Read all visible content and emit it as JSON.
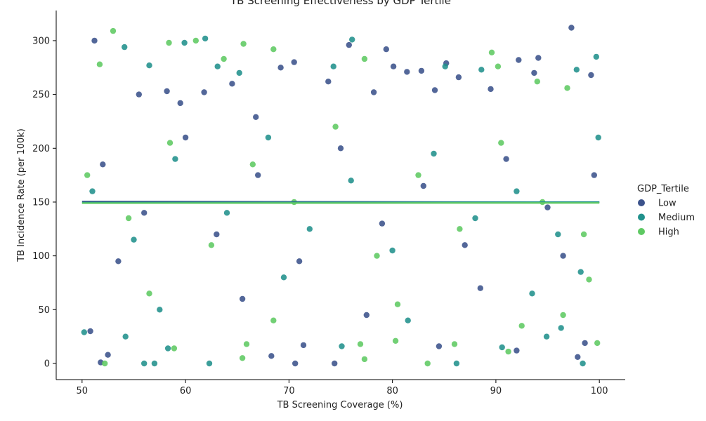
{
  "chart_data": {
    "type": "scatter",
    "title": "TB Screening Effectiveness by GDP Tertile",
    "xlabel": "TB Screening Coverage (%)",
    "ylabel": "TB Incidence Rate (per 100k)",
    "xlim": [
      47.5,
      102.5
    ],
    "ylim": [
      -15,
      328
    ],
    "xticks": [
      50,
      60,
      70,
      80,
      90,
      100
    ],
    "yticks": [
      0,
      50,
      100,
      150,
      200,
      250,
      300
    ],
    "grid": false,
    "legend": {
      "title": "GDP_Tertile",
      "placement": "right-center"
    },
    "series": [
      {
        "name": "Low",
        "color": "#3b528b",
        "regression": {
          "x": [
            50,
            100
          ],
          "y": [
            150.5,
            149.8
          ]
        },
        "points": [
          {
            "x": 51.2,
            "y": 300
          },
          {
            "x": 52.5,
            "y": 8
          },
          {
            "x": 51.8,
            "y": 1
          },
          {
            "x": 50.8,
            "y": 30
          },
          {
            "x": 55.5,
            "y": 250
          },
          {
            "x": 58.2,
            "y": 253
          },
          {
            "x": 59.5,
            "y": 242
          },
          {
            "x": 61.8,
            "y": 252
          },
          {
            "x": 64.5,
            "y": 260
          },
          {
            "x": 66.8,
            "y": 229
          },
          {
            "x": 68.3,
            "y": 7
          },
          {
            "x": 69.2,
            "y": 275
          },
          {
            "x": 70.5,
            "y": 280
          },
          {
            "x": 71.4,
            "y": 17
          },
          {
            "x": 70.6,
            "y": 0
          },
          {
            "x": 73.8,
            "y": 262
          },
          {
            "x": 74.4,
            "y": 0
          },
          {
            "x": 75.8,
            "y": 296
          },
          {
            "x": 78.2,
            "y": 252
          },
          {
            "x": 79.4,
            "y": 292
          },
          {
            "x": 80.1,
            "y": 276
          },
          {
            "x": 81.4,
            "y": 271
          },
          {
            "x": 82.8,
            "y": 272
          },
          {
            "x": 84.1,
            "y": 254
          },
          {
            "x": 85.2,
            "y": 279
          },
          {
            "x": 86.4,
            "y": 266
          },
          {
            "x": 89.5,
            "y": 255
          },
          {
            "x": 92.2,
            "y": 282
          },
          {
            "x": 93.7,
            "y": 270
          },
          {
            "x": 94.1,
            "y": 284
          },
          {
            "x": 97.3,
            "y": 312
          },
          {
            "x": 97.9,
            "y": 6
          },
          {
            "x": 98.6,
            "y": 19
          },
          {
            "x": 99.2,
            "y": 268
          },
          {
            "x": 92.0,
            "y": 12
          },
          {
            "x": 84.5,
            "y": 16
          },
          {
            "x": 52.0,
            "y": 185
          },
          {
            "x": 56.0,
            "y": 140
          },
          {
            "x": 60.0,
            "y": 210
          },
          {
            "x": 63.0,
            "y": 120
          },
          {
            "x": 67.0,
            "y": 175
          },
          {
            "x": 71.0,
            "y": 95
          },
          {
            "x": 75.0,
            "y": 200
          },
          {
            "x": 79.0,
            "y": 130
          },
          {
            "x": 83.0,
            "y": 165
          },
          {
            "x": 87.0,
            "y": 110
          },
          {
            "x": 91.0,
            "y": 190
          },
          {
            "x": 95.0,
            "y": 145
          },
          {
            "x": 99.5,
            "y": 175
          },
          {
            "x": 53.5,
            "y": 95
          },
          {
            "x": 65.5,
            "y": 60
          },
          {
            "x": 77.5,
            "y": 45
          },
          {
            "x": 88.5,
            "y": 70
          },
          {
            "x": 96.5,
            "y": 100
          }
        ]
      },
      {
        "name": "Medium",
        "color": "#21918c",
        "regression": {
          "x": [
            50,
            100
          ],
          "y": [
            149.5,
            150.0
          ]
        },
        "points": [
          {
            "x": 54.1,
            "y": 294
          },
          {
            "x": 56.5,
            "y": 277
          },
          {
            "x": 59.9,
            "y": 298
          },
          {
            "x": 61.9,
            "y": 302
          },
          {
            "x": 63.1,
            "y": 276
          },
          {
            "x": 65.2,
            "y": 270
          },
          {
            "x": 74.3,
            "y": 276
          },
          {
            "x": 76.1,
            "y": 301
          },
          {
            "x": 85.1,
            "y": 276
          },
          {
            "x": 88.6,
            "y": 273
          },
          {
            "x": 97.8,
            "y": 273
          },
          {
            "x": 99.7,
            "y": 285
          },
          {
            "x": 56.0,
            "y": 0
          },
          {
            "x": 57.0,
            "y": 0
          },
          {
            "x": 62.3,
            "y": 0
          },
          {
            "x": 86.2,
            "y": 0
          },
          {
            "x": 96.3,
            "y": 33
          },
          {
            "x": 98.4,
            "y": 0
          },
          {
            "x": 54.2,
            "y": 25
          },
          {
            "x": 50.2,
            "y": 29
          },
          {
            "x": 75.1,
            "y": 16
          },
          {
            "x": 94.9,
            "y": 25
          },
          {
            "x": 90.6,
            "y": 15
          },
          {
            "x": 58.3,
            "y": 14
          },
          {
            "x": 51.0,
            "y": 160
          },
          {
            "x": 55.0,
            "y": 115
          },
          {
            "x": 59.0,
            "y": 190
          },
          {
            "x": 64.0,
            "y": 140
          },
          {
            "x": 68.0,
            "y": 210
          },
          {
            "x": 72.0,
            "y": 125
          },
          {
            "x": 76.0,
            "y": 170
          },
          {
            "x": 80.0,
            "y": 105
          },
          {
            "x": 84.0,
            "y": 195
          },
          {
            "x": 88.0,
            "y": 135
          },
          {
            "x": 92.0,
            "y": 160
          },
          {
            "x": 96.0,
            "y": 120
          },
          {
            "x": 99.9,
            "y": 210
          },
          {
            "x": 57.5,
            "y": 50
          },
          {
            "x": 69.5,
            "y": 80
          },
          {
            "x": 81.5,
            "y": 40
          },
          {
            "x": 93.5,
            "y": 65
          },
          {
            "x": 98.2,
            "y": 85
          }
        ]
      },
      {
        "name": "High",
        "color": "#5ec962",
        "regression": {
          "x": [
            50,
            100
          ],
          "y": [
            149.0,
            149.2
          ]
        },
        "points": [
          {
            "x": 53.0,
            "y": 309
          },
          {
            "x": 58.4,
            "y": 298
          },
          {
            "x": 61.0,
            "y": 300
          },
          {
            "x": 63.7,
            "y": 283
          },
          {
            "x": 65.6,
            "y": 297
          },
          {
            "x": 68.5,
            "y": 292
          },
          {
            "x": 77.3,
            "y": 283
          },
          {
            "x": 89.6,
            "y": 289
          },
          {
            "x": 51.7,
            "y": 278
          },
          {
            "x": 90.2,
            "y": 276
          },
          {
            "x": 96.9,
            "y": 256
          },
          {
            "x": 94.0,
            "y": 262
          },
          {
            "x": 52.2,
            "y": 0
          },
          {
            "x": 65.5,
            "y": 5
          },
          {
            "x": 77.3,
            "y": 4
          },
          {
            "x": 91.2,
            "y": 11
          },
          {
            "x": 99.8,
            "y": 19
          },
          {
            "x": 80.3,
            "y": 21
          },
          {
            "x": 58.9,
            "y": 14
          },
          {
            "x": 83.4,
            "y": 0
          },
          {
            "x": 86.0,
            "y": 18
          },
          {
            "x": 76.9,
            "y": 18
          },
          {
            "x": 65.9,
            "y": 18
          },
          {
            "x": 96.5,
            "y": 45
          },
          {
            "x": 50.5,
            "y": 175
          },
          {
            "x": 54.5,
            "y": 135
          },
          {
            "x": 58.5,
            "y": 205
          },
          {
            "x": 62.5,
            "y": 110
          },
          {
            "x": 66.5,
            "y": 185
          },
          {
            "x": 70.5,
            "y": 150
          },
          {
            "x": 74.5,
            "y": 220
          },
          {
            "x": 78.5,
            "y": 100
          },
          {
            "x": 82.5,
            "y": 175
          },
          {
            "x": 86.5,
            "y": 125
          },
          {
            "x": 90.5,
            "y": 205
          },
          {
            "x": 94.5,
            "y": 150
          },
          {
            "x": 98.5,
            "y": 120
          },
          {
            "x": 56.5,
            "y": 65
          },
          {
            "x": 68.5,
            "y": 40
          },
          {
            "x": 80.5,
            "y": 55
          },
          {
            "x": 92.5,
            "y": 35
          },
          {
            "x": 99.0,
            "y": 78
          }
        ]
      }
    ]
  }
}
